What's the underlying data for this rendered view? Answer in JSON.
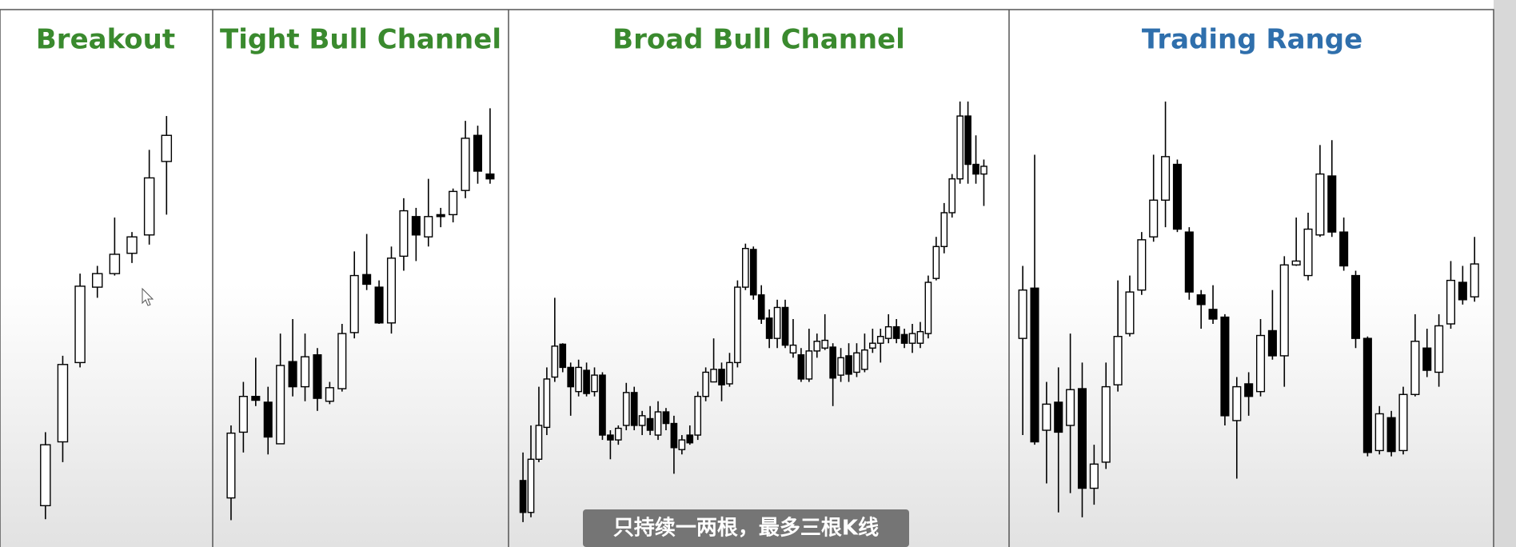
{
  "panels": [
    {
      "title": "Breakout"
    },
    {
      "title": "Tight Bull Channel"
    },
    {
      "title": "Broad Bull Channel"
    },
    {
      "title": "Trading Range"
    }
  ],
  "subtitle": "只持续一两根，最多三根K线"
}
